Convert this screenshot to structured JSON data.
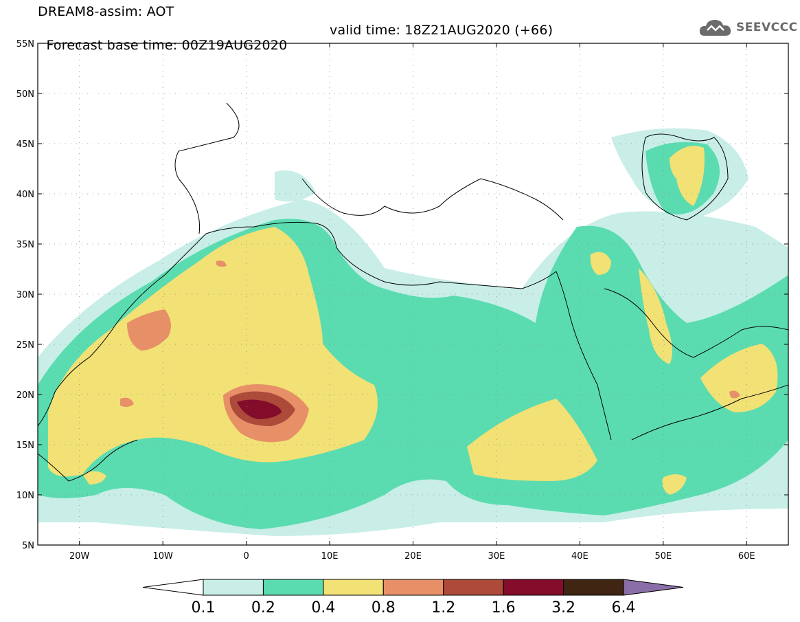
{
  "header": {
    "line1": "DREAM8-assim: AOT",
    "base_time": "Forecast base time: 00Z19AUG2020",
    "valid_time": "valid time: 18Z21AUG2020 (+66)",
    "logo_text": "SEEVCCC"
  },
  "map": {
    "lon_range": [
      -25,
      65
    ],
    "lat_range": [
      5,
      55
    ],
    "x_ticks": [
      "20W",
      "10W",
      "0",
      "10E",
      "20E",
      "30E",
      "40E",
      "50E",
      "60E"
    ],
    "y_ticks": [
      "55N",
      "50N",
      "45N",
      "40N",
      "35N",
      "30N",
      "25N",
      "20N",
      "15N",
      "10N",
      "5N"
    ]
  },
  "colorbar": {
    "labels": [
      "0.1",
      "0.2",
      "0.4",
      "0.8",
      "1.2",
      "1.6",
      "3.2",
      "6.4"
    ],
    "colors": [
      "#ffffff",
      "#c8eee7",
      "#5bdcb0",
      "#f2e175",
      "#e79068",
      "#ad4a3a",
      "#820c2a",
      "#3f2512",
      "#8a6ea7"
    ]
  },
  "field_colors": {
    "c1": "#c8eee7",
    "c2": "#5bdcb0",
    "c3": "#f2e175",
    "c4": "#e79068",
    "c5": "#ad4a3a",
    "c6": "#820c2a"
  }
}
